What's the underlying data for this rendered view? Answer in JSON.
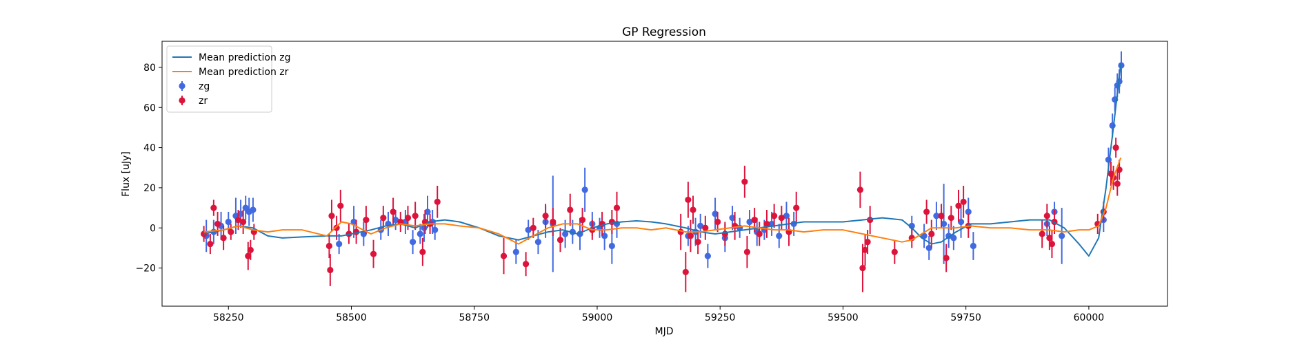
{
  "chart_data": {
    "type": "scatter",
    "title": "GP Regression",
    "xlabel": "MJD",
    "ylabel": "Flux [uJy]",
    "xlim": [
      58115,
      60160
    ],
    "ylim": [
      -39,
      93
    ],
    "xticks": [
      58250,
      58500,
      58750,
      59000,
      59250,
      59500,
      59750,
      60000
    ],
    "xtick_labels": [
      "58250",
      "58500",
      "58750",
      "59000",
      "59250",
      "59500",
      "59750",
      "60000"
    ],
    "yticks": [
      -20,
      0,
      20,
      40,
      60,
      80
    ],
    "ytick_labels": [
      "−20",
      "0",
      "20",
      "40",
      "60",
      "80"
    ],
    "grid": false,
    "legend_position": "upper-left",
    "legend": [
      {
        "label": "Mean prediction zg",
        "kind": "line",
        "color": "#1f77b4"
      },
      {
        "label": "Mean prediction zr",
        "kind": "line",
        "color": "#ff7f0e"
      },
      {
        "label": "zg",
        "kind": "errorbar",
        "color": "#4169e1"
      },
      {
        "label": "zr",
        "kind": "errorbar",
        "color": "#dc143c"
      }
    ],
    "series": [
      {
        "name": "Mean prediction zg",
        "type": "line",
        "color": "#1f77b4",
        "x": [
          58200,
          58240,
          58270,
          58300,
          58330,
          58360,
          58400,
          58450,
          58480,
          58500,
          58540,
          58570,
          58600,
          58630,
          58660,
          58690,
          58720,
          58760,
          58800,
          58840,
          58870,
          58900,
          58930,
          58960,
          58990,
          59020,
          59050,
          59080,
          59110,
          59140,
          59180,
          59210,
          59240,
          59270,
          59300,
          59330,
          59360,
          59390,
          59420,
          59460,
          59500,
          59540,
          59580,
          59620,
          59640,
          59660,
          59680,
          59700,
          59730,
          59760,
          59800,
          59840,
          59880,
          59920,
          59950,
          59980,
          60000,
          60020,
          60035,
          60050,
          60065
        ],
        "y": [
          -3,
          -1,
          1,
          0,
          -4,
          -5,
          -4.5,
          -4,
          -4,
          -3,
          -1,
          1,
          2,
          0,
          3,
          4,
          3,
          0,
          -4,
          -6,
          -4,
          -2,
          -1,
          -3,
          0,
          2,
          3,
          3.5,
          3,
          2,
          0,
          -2,
          -3,
          -2,
          -1,
          0,
          1,
          2,
          3,
          3,
          3,
          4,
          5,
          4,
          0,
          -5,
          -8,
          -7,
          -2,
          2,
          2,
          3,
          4,
          4,
          0,
          -8,
          -14,
          -5,
          20,
          50,
          82
        ]
      },
      {
        "name": "Mean prediction zr",
        "type": "line",
        "color": "#ff7f0e",
        "x": [
          58200,
          58240,
          58270,
          58300,
          58330,
          58360,
          58400,
          58450,
          58480,
          58500,
          58540,
          58570,
          58600,
          58630,
          58660,
          58690,
          58720,
          58760,
          58800,
          58840,
          58870,
          58900,
          58930,
          58960,
          58990,
          59020,
          59050,
          59080,
          59110,
          59140,
          59180,
          59210,
          59240,
          59270,
          59300,
          59330,
          59360,
          59390,
          59420,
          59460,
          59500,
          59540,
          59580,
          59620,
          59640,
          59660,
          59680,
          59700,
          59730,
          59760,
          59800,
          59840,
          59880,
          59920,
          59950,
          59980,
          60000,
          60020,
          60035,
          60050,
          60065
        ],
        "y": [
          -2,
          -1,
          1,
          -1,
          -2,
          -1,
          -1,
          -4,
          3,
          2,
          -3,
          0,
          2,
          1,
          2,
          2,
          1,
          0,
          -3,
          -8,
          -4,
          0,
          2,
          2,
          -1,
          -1,
          0,
          0,
          -1,
          0,
          -2,
          -2,
          -1,
          0,
          1,
          0,
          -1,
          -1,
          -2,
          -1,
          -1,
          -3,
          -5,
          -7,
          -6,
          -3,
          0,
          0,
          0,
          1,
          0,
          0,
          -1,
          -1,
          -2,
          -1,
          -1,
          1,
          10,
          25,
          35
        ]
      },
      {
        "name": "zg",
        "type": "errorbar",
        "color": "#4169e1",
        "x": [
          58205,
          58220,
          58235,
          58250,
          58265,
          58275,
          58285,
          58292,
          58300,
          58475,
          58505,
          58525,
          58560,
          58575,
          58590,
          58610,
          58625,
          58640,
          58648,
          58655,
          58665,
          58670,
          58835,
          58860,
          58880,
          58895,
          58910,
          58935,
          58950,
          58965,
          58975,
          58990,
          59005,
          59015,
          59030,
          59040,
          59185,
          59200,
          59210,
          59225,
          59240,
          59260,
          59275,
          59290,
          59310,
          59325,
          59340,
          59355,
          59370,
          59385,
          59400,
          59640,
          59665,
          59675,
          59690,
          59705,
          59715,
          59725,
          59740,
          59755,
          59765,
          59915,
          59930,
          59945,
          60030,
          60040,
          60048,
          60053,
          60058,
          60062,
          60066
        ],
        "y": [
          -4,
          -2,
          1,
          3,
          6,
          7,
          10,
          8,
          9,
          -8,
          3,
          -3,
          -1,
          2,
          4,
          3,
          -7,
          -3,
          0,
          8,
          3,
          -1,
          -12,
          -1,
          -7,
          3,
          2,
          -3,
          -2,
          -3,
          19,
          2,
          0,
          -4,
          -9,
          2,
          -4,
          -2,
          1,
          -14,
          7,
          -5,
          5,
          0,
          3,
          -2,
          -1,
          2,
          -4,
          6,
          2,
          1,
          -4,
          -10,
          6,
          2,
          -4,
          -5,
          3,
          8,
          -9,
          2,
          8,
          -4,
          4,
          34,
          51,
          64,
          71,
          73,
          81
        ],
        "err": [
          8,
          6,
          7,
          5,
          9,
          7,
          6,
          7,
          6,
          5,
          8,
          6,
          5,
          6,
          5,
          6,
          6,
          5,
          7,
          8,
          6,
          5,
          6,
          5,
          6,
          8,
          24,
          7,
          6,
          8,
          11,
          6,
          5,
          7,
          9,
          7,
          5,
          7,
          6,
          6,
          8,
          7,
          6,
          5,
          6,
          7,
          5,
          6,
          6,
          7,
          6,
          5,
          6,
          6,
          7,
          20,
          6,
          6,
          8,
          7,
          7,
          6,
          5,
          14,
          6,
          6,
          6,
          6,
          6,
          6,
          7
        ]
      },
      {
        "name": "zr",
        "type": "errorbar",
        "color": "#dc143c",
        "x": [
          58200,
          58213,
          58220,
          58228,
          58240,
          58255,
          58270,
          58280,
          58290,
          58295,
          58302,
          58455,
          58457,
          58460,
          58470,
          58478,
          58495,
          58510,
          58530,
          58545,
          58565,
          58585,
          58600,
          58615,
          58630,
          58645,
          58650,
          58660,
          58675,
          58810,
          58855,
          58870,
          58895,
          58910,
          58925,
          58945,
          58970,
          58990,
          59010,
          59030,
          59040,
          59170,
          59180,
          59185,
          59190,
          59195,
          59205,
          59220,
          59245,
          59260,
          59280,
          59300,
          59305,
          59320,
          59330,
          59345,
          59360,
          59375,
          59390,
          59405,
          59535,
          59540,
          59545,
          59550,
          59555,
          59605,
          59640,
          59670,
          59680,
          59700,
          59710,
          59720,
          59735,
          59745,
          59755,
          59905,
          59915,
          59920,
          59925,
          59930,
          60018,
          60030,
          60045,
          60050,
          60055,
          60058,
          60062
        ],
        "y": [
          -3,
          -8,
          10,
          2,
          -5,
          -2,
          4,
          3,
          -14,
          -11,
          -2,
          -9,
          -21,
          6,
          0,
          11,
          -3,
          -2,
          4,
          -13,
          5,
          8,
          3,
          5,
          6,
          -12,
          3,
          2,
          13,
          -14,
          -18,
          0,
          6,
          3,
          -6,
          9,
          4,
          -1,
          2,
          3,
          10,
          -2,
          -22,
          14,
          -4,
          9,
          -7,
          0,
          3,
          -3,
          1,
          23,
          -12,
          4,
          -3,
          2,
          6,
          5,
          -2,
          10,
          19,
          -20,
          -11,
          -7,
          4,
          -12,
          -5,
          8,
          -3,
          6,
          -15,
          5,
          11,
          13,
          1,
          -3,
          6,
          -5,
          -8,
          3,
          2,
          8,
          27,
          25,
          40,
          22,
          29
        ],
        "err": [
          4,
          5,
          4,
          6,
          6,
          4,
          5,
          6,
          7,
          5,
          4,
          6,
          8,
          8,
          6,
          8,
          5,
          6,
          7,
          7,
          6,
          7,
          5,
          6,
          7,
          7,
          6,
          5,
          8,
          9,
          6,
          5,
          6,
          7,
          6,
          8,
          6,
          5,
          6,
          6,
          8,
          9,
          10,
          9,
          8,
          7,
          6,
          6,
          5,
          6,
          7,
          8,
          8,
          6,
          6,
          7,
          6,
          6,
          7,
          8,
          9,
          12,
          8,
          6,
          7,
          6,
          5,
          6,
          7,
          6,
          7,
          6,
          8,
          8,
          6,
          7,
          6,
          6,
          7,
          6,
          5,
          5,
          6,
          6,
          5,
          6,
          5
        ]
      }
    ]
  }
}
